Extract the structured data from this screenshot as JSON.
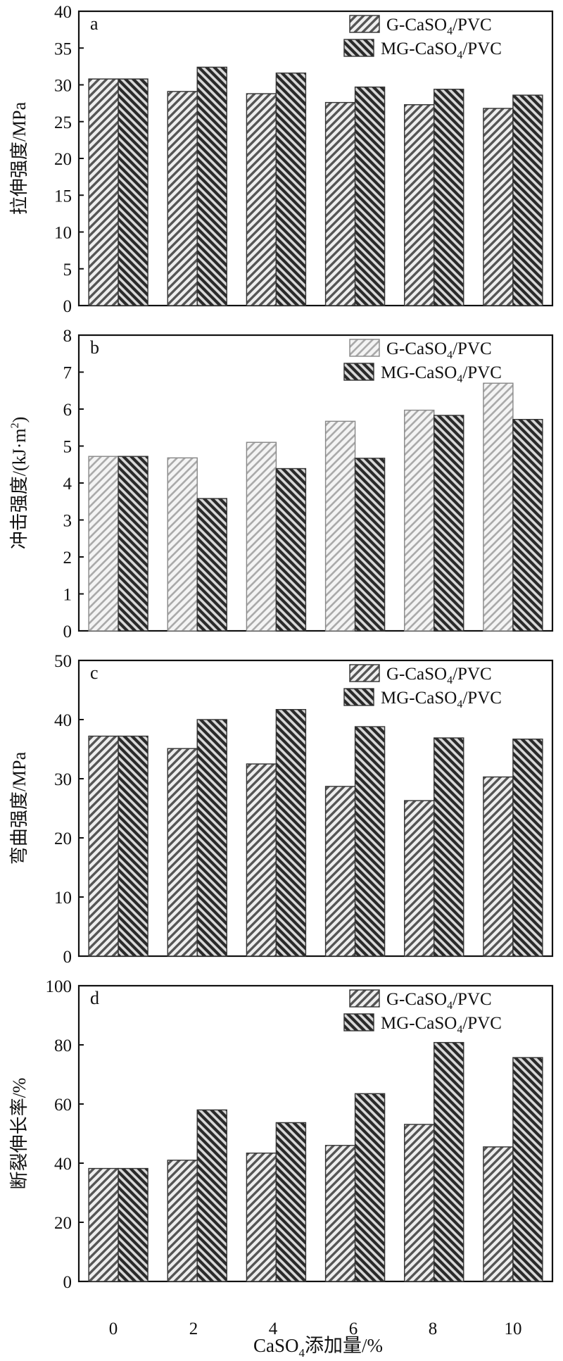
{
  "figure": {
    "x_categories": [
      "0",
      "2",
      "4",
      "6",
      "8",
      "10"
    ],
    "xlabel_main": "CaSO",
    "xlabel_sub": "4",
    "xlabel_tail": "添加量/%"
  },
  "colors": {
    "g_bar_fill": "#eeeeee",
    "g_bar_stroke": "#444444",
    "g_hatch": "#555555",
    "g_hatch_light": "#aaaaaa",
    "mg_bar_fill": "#d8d8d8",
    "mg_hatch": "#2a2a2a",
    "axis": "#111111"
  },
  "chart_data": [
    {
      "type": "bar",
      "panel": "a",
      "ylabel": "拉伸强度/MPa",
      "ylim": [
        0,
        40
      ],
      "yticks": [
        "0",
        "5",
        "10",
        "15",
        "20",
        "25",
        "30",
        "35",
        "40"
      ],
      "legend_position": "top-right",
      "categories": [
        "0",
        "2",
        "4",
        "6",
        "8",
        "10"
      ],
      "series": [
        {
          "name": "G-CaSO4/PVC",
          "legend_main": "G-CaSO",
          "legend_sub": "4",
          "legend_tail": "/PVC",
          "values": [
            30.8,
            29.1,
            28.8,
            27.6,
            27.3,
            26.8
          ]
        },
        {
          "name": "MG-CaSO4/PVC",
          "legend_main": "MG-CaSO",
          "legend_sub": "4",
          "legend_tail": "/PVC",
          "values": [
            30.8,
            32.4,
            31.6,
            29.7,
            29.4,
            28.6
          ]
        }
      ]
    },
    {
      "type": "bar",
      "panel": "b",
      "ylabel": "冲击强度/(kJ·m",
      "ylabel_sup": "2",
      "ylabel_tail": ")",
      "ylim": [
        0,
        8
      ],
      "yticks": [
        "0",
        "1",
        "2",
        "3",
        "4",
        "5",
        "6",
        "7",
        "8"
      ],
      "legend_position": "top-right",
      "categories": [
        "0",
        "2",
        "4",
        "6",
        "8",
        "10"
      ],
      "series": [
        {
          "name": "G-CaSO4/PVC",
          "legend_main": "G-CaSO",
          "legend_sub": "4",
          "legend_tail": "/PVC",
          "values": [
            4.72,
            4.68,
            5.1,
            5.67,
            5.97,
            6.7
          ]
        },
        {
          "name": "MG-CaSO4/PVC",
          "legend_main": "MG-CaSO",
          "legend_sub": "4",
          "legend_tail": "/PVC",
          "values": [
            4.72,
            3.58,
            4.39,
            4.67,
            5.83,
            5.72
          ]
        }
      ]
    },
    {
      "type": "bar",
      "panel": "c",
      "ylabel": "弯曲强度/MPa",
      "ylim": [
        0,
        50
      ],
      "yticks": [
        "0",
        "10",
        "20",
        "30",
        "40",
        "50"
      ],
      "legend_position": "top-right",
      "categories": [
        "0",
        "2",
        "4",
        "6",
        "8",
        "10"
      ],
      "series": [
        {
          "name": "G-CaSO4/PVC",
          "legend_main": "G-CaSO",
          "legend_sub": "4",
          "legend_tail": "/PVC",
          "values": [
            37.2,
            35.1,
            32.5,
            28.7,
            26.3,
            30.3
          ]
        },
        {
          "name": "MG-CaSO4/PVC",
          "legend_main": "MG-CaSO",
          "legend_sub": "4",
          "legend_tail": "/PVC",
          "values": [
            37.2,
            40.0,
            41.7,
            38.8,
            36.9,
            36.7
          ]
        }
      ]
    },
    {
      "type": "bar",
      "panel": "d",
      "ylabel": "断裂伸长率/%",
      "ylim": [
        0,
        100
      ],
      "yticks": [
        "0",
        "20",
        "40",
        "60",
        "80",
        "100"
      ],
      "legend_position": "top-right",
      "categories": [
        "0",
        "2",
        "4",
        "6",
        "8",
        "10"
      ],
      "series": [
        {
          "name": "G-CaSO4/PVC",
          "legend_main": "G-CaSO",
          "legend_sub": "4",
          "legend_tail": "/PVC",
          "values": [
            38.2,
            41.0,
            43.4,
            46.0,
            53.1,
            45.5
          ]
        },
        {
          "name": "MG-CaSO4/PVC",
          "legend_main": "MG-CaSO",
          "legend_sub": "4",
          "legend_tail": "/PVC",
          "values": [
            38.2,
            58.0,
            53.7,
            63.5,
            80.8,
            75.7
          ]
        }
      ]
    }
  ]
}
